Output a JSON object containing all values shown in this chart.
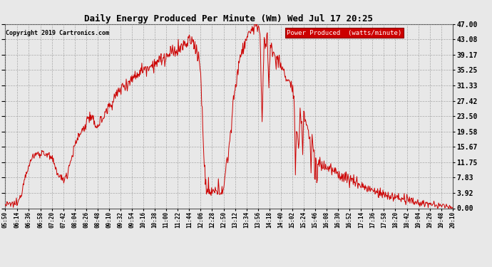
{
  "title": "Daily Energy Produced Per Minute (Wm) Wed Jul 17 20:25",
  "copyright": "Copyright 2019 Cartronics.com",
  "legend_label": "Power Produced  (watts/minute)",
  "legend_bg": "#cc0000",
  "legend_text_color": "#ffffff",
  "line_color": "#cc0000",
  "bg_color": "#e8e8e8",
  "grid_color": "#999999",
  "ylabel_right": [
    "47.00",
    "43.08",
    "39.17",
    "35.25",
    "31.33",
    "27.42",
    "23.50",
    "19.58",
    "15.67",
    "11.75",
    "7.83",
    "3.92",
    "0.00"
  ],
  "ymax": 47.0,
  "ymin": 0.0,
  "start_time": "05:50",
  "end_time": "20:10",
  "xtick_labels": [
    "05:50",
    "06:14",
    "06:36",
    "06:58",
    "07:20",
    "07:42",
    "08:04",
    "08:26",
    "08:48",
    "09:10",
    "09:32",
    "09:54",
    "10:16",
    "10:38",
    "11:00",
    "11:22",
    "11:44",
    "12:06",
    "12:28",
    "12:50",
    "13:12",
    "13:34",
    "13:56",
    "14:18",
    "14:40",
    "15:02",
    "15:24",
    "15:46",
    "16:08",
    "16:30",
    "16:52",
    "17:14",
    "17:36",
    "17:58",
    "18:20",
    "18:42",
    "19:04",
    "19:26",
    "19:48",
    "20:10"
  ],
  "title_fontsize": 9,
  "tick_fontsize": 5.5,
  "ytick_fontsize": 7
}
